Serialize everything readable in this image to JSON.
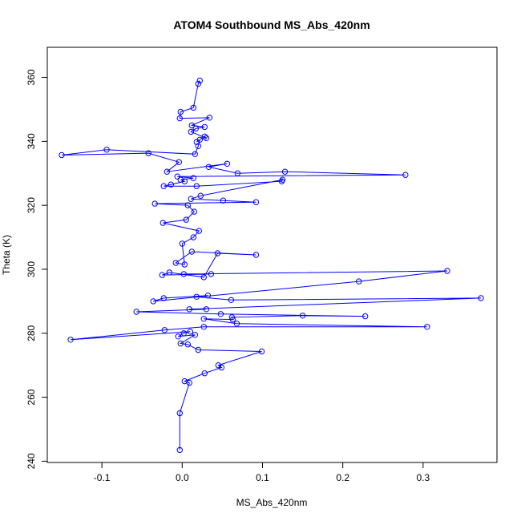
{
  "chart_data": {
    "type": "line",
    "title": "ATOM4 Southbound MS_Abs_420nm",
    "xlabel": "MS_Abs_420nm",
    "ylabel": "Theta (K)",
    "xlim": [
      -0.168,
      0.392
    ],
    "ylim": [
      239.6,
      369.4
    ],
    "xticks": [
      -0.1,
      0.0,
      0.1,
      0.2,
      0.3
    ],
    "xtick_labels": [
      "-0.1",
      "0.0",
      "0.1",
      "0.2",
      "0.3"
    ],
    "yticks": [
      240,
      260,
      280,
      300,
      320,
      340,
      360
    ],
    "ytick_labels": [
      "240",
      "260",
      "280",
      "300",
      "320",
      "340",
      "360"
    ],
    "grid": false,
    "marker": "open-circle",
    "colors": {
      "series": "#0000ff",
      "axes": "#000000"
    },
    "series": [
      {
        "values": [
          [
            -0.003,
            243.5
          ],
          [
            -0.003,
            255.0
          ],
          [
            0.009,
            264.5
          ],
          [
            0.003,
            265.0
          ],
          [
            0.028,
            267.5
          ],
          [
            0.049,
            269.3
          ],
          [
            0.045,
            270.0
          ],
          [
            0.099,
            274.3
          ],
          [
            0.02,
            274.8
          ],
          [
            0.007,
            276.5
          ],
          [
            -0.002,
            276.8
          ],
          [
            0.016,
            279.5
          ],
          [
            -0.005,
            279.0
          ],
          [
            0.002,
            280.0
          ],
          [
            0.01,
            280.5
          ],
          [
            -0.139,
            278.0
          ],
          [
            -0.022,
            281.0
          ],
          [
            0.027,
            282.0
          ],
          [
            0.305,
            282.0
          ],
          [
            0.068,
            283.0
          ],
          [
            0.027,
            284.5
          ],
          [
            0.063,
            284.3
          ],
          [
            0.062,
            285.0
          ],
          [
            0.15,
            285.5
          ],
          [
            0.228,
            285.3
          ],
          [
            0.048,
            286.0
          ],
          [
            -0.057,
            286.7
          ],
          [
            0.03,
            287.5
          ],
          [
            0.009,
            287.5
          ],
          [
            0.372,
            291.0
          ],
          [
            0.061,
            290.4
          ],
          [
            0.018,
            291.4
          ],
          [
            0.032,
            291.8
          ],
          [
            -0.023,
            291.0
          ],
          [
            -0.036,
            290.0
          ],
          [
            0.22,
            296.2
          ],
          [
            0.33,
            299.5
          ],
          [
            0.002,
            298.5
          ],
          [
            0.036,
            298.5
          ],
          [
            -0.025,
            298.2
          ],
          [
            -0.016,
            299.0
          ],
          [
            0.027,
            297.5
          ],
          [
            0.044,
            305.0
          ],
          [
            0.092,
            304.5
          ],
          [
            0.012,
            305.5
          ],
          [
            -0.008,
            302.0
          ],
          [
            0.003,
            301.5
          ],
          [
            0.0,
            308.0
          ],
          [
            0.014,
            310.0
          ],
          [
            0.021,
            312.0
          ],
          [
            -0.024,
            314.5
          ],
          [
            0.005,
            315.5
          ],
          [
            0.015,
            318.0
          ],
          [
            0.007,
            320.0
          ],
          [
            -0.034,
            320.5
          ],
          [
            0.092,
            321.0
          ],
          [
            0.051,
            321.5
          ],
          [
            0.011,
            322.0
          ],
          [
            0.023,
            323.0
          ],
          [
            0.125,
            328.0
          ],
          [
            0.124,
            327.5
          ],
          [
            0.018,
            326.0
          ],
          [
            -0.023,
            326.0
          ],
          [
            -0.014,
            326.5
          ],
          [
            0.003,
            327.5
          ],
          [
            -0.002,
            328.0
          ],
          [
            0.014,
            328.5
          ],
          [
            -0.006,
            329.0
          ],
          [
            0.278,
            329.5
          ],
          [
            0.128,
            330.5
          ],
          [
            0.069,
            330.0
          ],
          [
            0.033,
            332.0
          ],
          [
            0.056,
            333.0
          ],
          [
            -0.019,
            330.5
          ],
          [
            -0.004,
            333.5
          ],
          [
            -0.042,
            336.3
          ],
          [
            -0.15,
            335.7
          ],
          [
            -0.094,
            337.4
          ],
          [
            0.016,
            336.0
          ],
          [
            0.02,
            338.5
          ],
          [
            0.022,
            340.5
          ],
          [
            0.018,
            339.8
          ],
          [
            0.028,
            341.5
          ],
          [
            0.03,
            341.0
          ],
          [
            0.011,
            343.0
          ],
          [
            0.017,
            344.0
          ],
          [
            0.028,
            344.5
          ],
          [
            0.012,
            345.0
          ],
          [
            0.034,
            347.4
          ],
          [
            -0.003,
            347.2
          ],
          [
            -0.002,
            349.2
          ],
          [
            0.014,
            350.5
          ],
          [
            0.02,
            358.0
          ],
          [
            0.022,
            359.0
          ]
        ]
      }
    ]
  }
}
